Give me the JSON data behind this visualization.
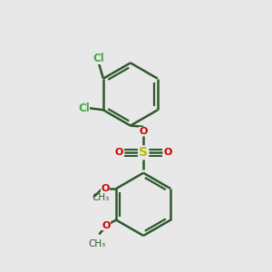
{
  "bg_color": "#e8e8e8",
  "bond_color": "#2d5a2d",
  "bond_width": 1.8,
  "S_color": "#b8b800",
  "O_color": "#cc0000",
  "Cl_color": "#44aa44",
  "C_color": "#2d5a2d",
  "fig_size": [
    3.0,
    3.0
  ],
  "dpi": 100,
  "xlim": [
    -2.5,
    2.5
  ],
  "ylim": [
    -3.5,
    3.8
  ]
}
